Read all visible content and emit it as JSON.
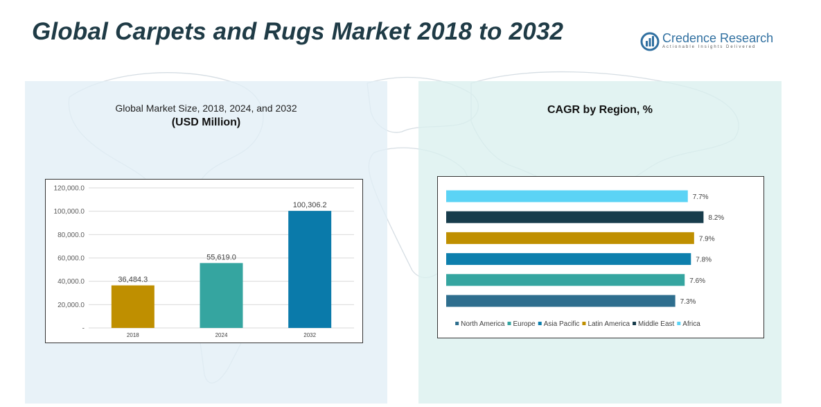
{
  "title": "Global Carpets and Rugs Market 2018 to 2032",
  "logo": {
    "name": "Credence Research",
    "tagline": "Actionable Insights Delivered"
  },
  "left_panel": {
    "subtitle": "Global Market Size, 2018, 2024, and 2032",
    "unit": "(USD Million)"
  },
  "right_panel": {
    "subtitle": "CAGR by Region, %"
  },
  "chart_data": [
    {
      "type": "bar",
      "categories": [
        "2018",
        "2024",
        "2032"
      ],
      "values": [
        36484.3,
        55619.0,
        100306.2
      ],
      "value_labels": [
        "36,484.3",
        "55,619.0",
        "100,306.2"
      ],
      "colors": [
        "#bf8f00",
        "#35a5a0",
        "#0a7aaa"
      ],
      "ylim": [
        0,
        120000
      ],
      "yticks": [
        "-",
        "20,000.0",
        "40,000.0",
        "60,000.0",
        "80,000.0",
        "100,000.0",
        "120,000.0"
      ],
      "grid": true
    },
    {
      "type": "bar",
      "orientation": "horizontal",
      "categories": [
        "Africa",
        "Middle East",
        "Latin America",
        "Asia Pacific",
        "Europe",
        "North America"
      ],
      "values": [
        7.7,
        8.2,
        7.9,
        7.8,
        7.6,
        7.3
      ],
      "value_labels": [
        "7.7%",
        "8.2%",
        "7.9%",
        "7.8%",
        "7.6%",
        "7.3%"
      ],
      "colors": [
        "#5bd3f5",
        "#173c4b",
        "#bf8f00",
        "#0d7fad",
        "#35a5a0",
        "#2e6e8e"
      ],
      "xlim": [
        0,
        8.5
      ],
      "legend": {
        "position": "bottom",
        "items": [
          {
            "label": "North America",
            "color": "#2e6e8e"
          },
          {
            "label": "Europe",
            "color": "#35a5a0"
          },
          {
            "label": "Asia Pacific",
            "color": "#0d7fad"
          },
          {
            "label": "Latin America",
            "color": "#bf8f00"
          },
          {
            "label": "Middle East",
            "color": "#173c4b"
          },
          {
            "label": "Africa",
            "color": "#5bd3f5"
          }
        ]
      }
    }
  ]
}
